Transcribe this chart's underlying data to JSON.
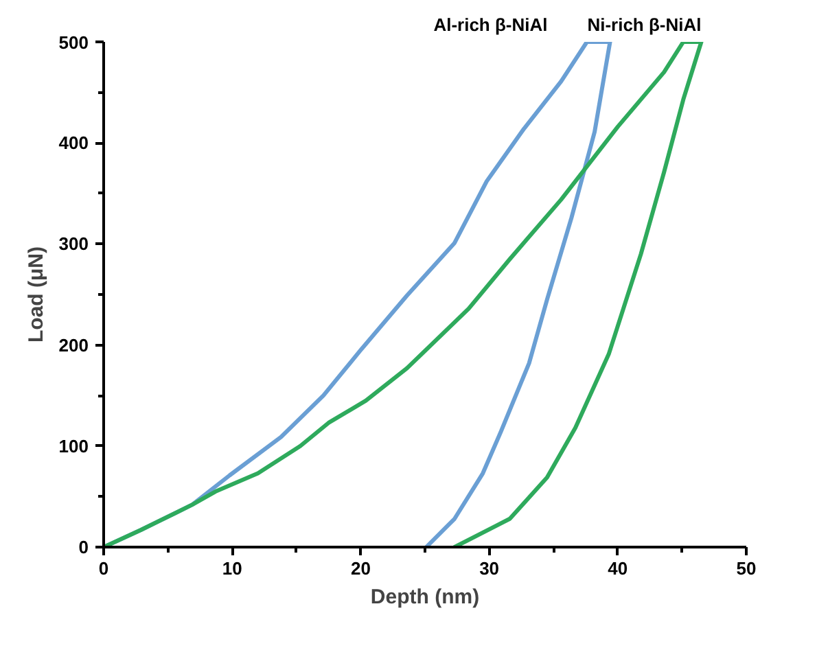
{
  "chart_data": {
    "type": "line",
    "xlabel": "Depth (nm)",
    "ylabel": "Load (μN)",
    "xlim": [
      0,
      50
    ],
    "ylim": [
      0,
      500
    ],
    "xticks": [
      0,
      10,
      20,
      30,
      40,
      50
    ],
    "yticks": [
      0,
      100,
      200,
      300,
      400,
      500
    ],
    "grid": false,
    "marker": "none",
    "line_style": "solid",
    "series": [
      {
        "name": "Al-rich β-NiAl",
        "color": "#6a9fd4",
        "x": [
          0,
          2.9,
          6.9,
          9.8,
          13.8,
          17.1,
          20,
          23.6,
          27.3,
          29.8,
          32.7,
          35.6,
          37.6,
          39.4,
          38.2,
          36.4,
          34.5,
          33.1,
          30.9,
          29.5,
          27.3,
          25.1
        ],
        "values": [
          0,
          17,
          42,
          71,
          109,
          150,
          195,
          249,
          301,
          362,
          414,
          461,
          500,
          500,
          411,
          326,
          245,
          182,
          114,
          73,
          28,
          0
        ]
      },
      {
        "name": "Ni-rich β-NiAl",
        "color": "#2eaa5c",
        "x": [
          0,
          2.9,
          6.9,
          8.7,
          12,
          15.3,
          17.5,
          20.4,
          23.6,
          28.4,
          31.6,
          35.6,
          40,
          43.6,
          45.1,
          46.5,
          45.1,
          43.6,
          41.8,
          39.3,
          36.7,
          34.5,
          31.6,
          27.3
        ],
        "values": [
          0,
          17,
          42,
          55,
          73,
          100,
          123,
          145,
          177,
          236,
          285,
          344,
          416,
          470,
          500,
          500,
          443,
          371,
          290,
          191,
          118,
          69,
          28,
          0
        ]
      }
    ]
  }
}
